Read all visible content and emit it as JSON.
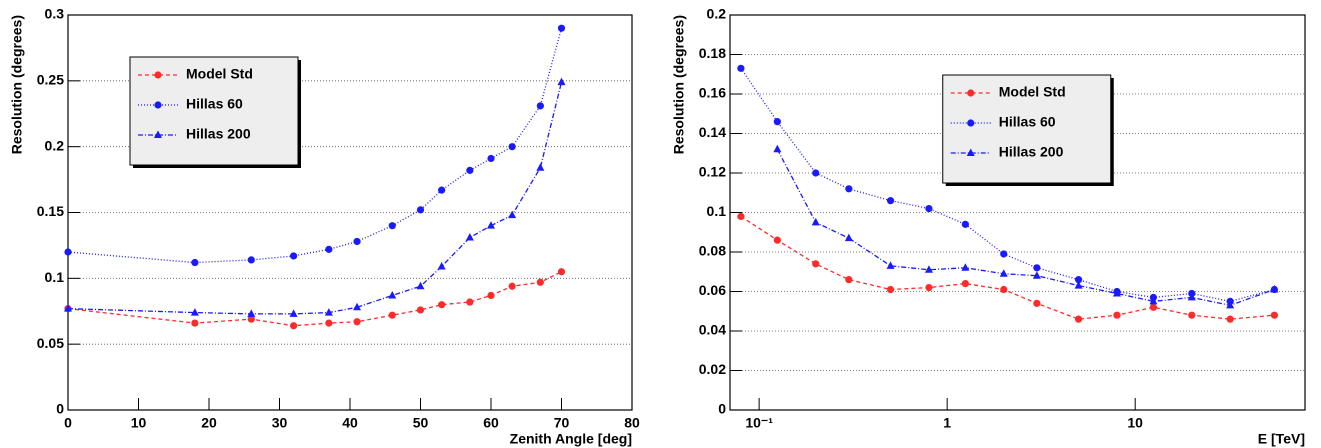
{
  "chart_data": [
    {
      "type": "line",
      "xlabel": "Zenith Angle [deg]",
      "ylabel": "Resolution (degrees)",
      "x": [
        0,
        18,
        26,
        32,
        37,
        41,
        46,
        50,
        53,
        57,
        60,
        63,
        67,
        70
      ],
      "xlim": [
        0,
        80
      ],
      "xticks": [
        0,
        10,
        20,
        30,
        40,
        50,
        60,
        70,
        80
      ],
      "ylim": [
        0,
        0.3
      ],
      "yticks": [
        0,
        0.05,
        0.1,
        0.15,
        0.2,
        0.25,
        0.3
      ],
      "grid": "y",
      "legend": "upper left",
      "series": [
        {
          "name": "Model Std",
          "color": "#ff2a2a",
          "marker": "circle",
          "dash": "4,3",
          "values": [
            0.077,
            0.066,
            0.069,
            0.064,
            0.066,
            0.067,
            0.072,
            0.076,
            0.08,
            0.082,
            0.087,
            0.094,
            0.097,
            0.105
          ]
        },
        {
          "name": "Hillas 60",
          "color": "#1a1aff",
          "marker": "circle",
          "dash": "1,2",
          "values": [
            0.12,
            0.112,
            0.114,
            0.117,
            0.122,
            0.128,
            0.14,
            0.152,
            0.167,
            0.182,
            0.191,
            0.2,
            0.231,
            0.29
          ]
        },
        {
          "name": "Hillas 200",
          "color": "#1a1aff",
          "marker": "triangle",
          "dash": "5,2,1,2",
          "values": [
            0.077,
            0.074,
            0.073,
            0.073,
            0.074,
            0.078,
            0.087,
            0.094,
            0.109,
            0.131,
            0.14,
            0.148,
            0.184,
            0.249
          ]
        }
      ]
    },
    {
      "type": "line",
      "xlabel": "E [TeV]",
      "ylabel": "Resolution (degrees)",
      "xscale": "log",
      "x": [
        0.08,
        0.125,
        0.2,
        0.3,
        0.5,
        0.8,
        1.25,
        2,
        3,
        5,
        8,
        12.5,
        20,
        32,
        55
      ],
      "xlim": [
        0.07,
        80
      ],
      "xticks": [
        {
          "value": 0.1,
          "label": "10⁻¹"
        },
        1,
        10
      ],
      "ylim": [
        0,
        0.2
      ],
      "yticks": [
        0,
        0.02,
        0.04,
        0.06,
        0.08,
        0.1,
        0.12,
        0.14,
        0.16,
        0.18,
        0.2
      ],
      "grid": "y",
      "legend": "upper right",
      "series": [
        {
          "name": "Model Std",
          "color": "#ff2a2a",
          "marker": "circle",
          "dash": "4,3",
          "values": [
            0.098,
            0.086,
            0.074,
            0.066,
            0.061,
            0.062,
            0.064,
            0.061,
            0.054,
            0.046,
            0.048,
            0.052,
            0.048,
            0.046,
            0.048
          ]
        },
        {
          "name": "Hillas 60",
          "color": "#1a1aff",
          "marker": "circle",
          "dash": "1,2",
          "values": [
            0.173,
            0.146,
            0.12,
            0.112,
            0.106,
            0.102,
            0.094,
            0.079,
            0.072,
            0.066,
            0.06,
            0.057,
            0.059,
            0.055,
            0.061
          ]
        },
        {
          "name": "Hillas 200",
          "color": "#1a1aff",
          "marker": "triangle",
          "dash": "5,2,1,2",
          "values": [
            null,
            0.132,
            0.095,
            0.087,
            0.073,
            0.071,
            0.072,
            0.069,
            0.068,
            0.063,
            0.059,
            0.055,
            0.057,
            0.053,
            0.061
          ]
        }
      ]
    }
  ]
}
